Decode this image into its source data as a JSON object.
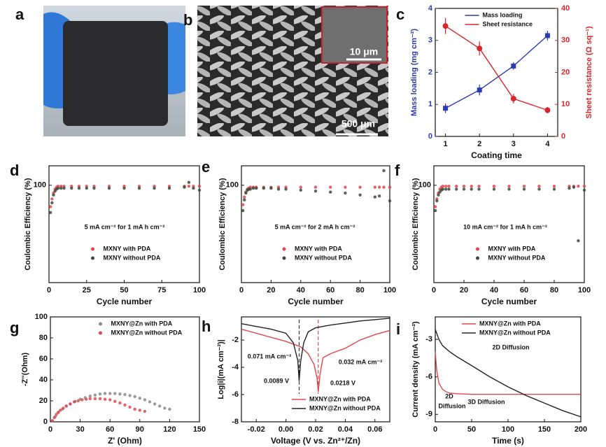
{
  "chart_data": [
    {
      "type": "image",
      "label": "a"
    },
    {
      "type": "image",
      "label": "b",
      "annotations": [
        "10 μm",
        "500 μm"
      ]
    },
    {
      "type": "line",
      "label": "c",
      "x": [
        1,
        2,
        3,
        4
      ],
      "xlim": [
        0.7,
        4.3
      ],
      "xticks": [
        1,
        2,
        3,
        4
      ],
      "ylim": [
        0,
        4
      ],
      "yticks": [
        0,
        1,
        2,
        3,
        4
      ],
      "y2lim": [
        0,
        40
      ],
      "y2ticks": [
        0,
        10,
        20,
        30,
        40
      ],
      "xlabel": "Coating time",
      "ylabel": "Mass loading (mg cm⁻²)",
      "y2label": "Sheet resistance (Ω sq⁻¹)",
      "legend": "upper center",
      "series": [
        {
          "name": "Mass loading",
          "color": "#2b3bb3",
          "values": [
            0.88,
            1.45,
            2.2,
            3.15
          ],
          "errors": [
            0.15,
            0.17,
            0.12,
            0.15
          ]
        },
        {
          "name": "Sheet resistance",
          "color": "#d8262b",
          "axis": "y2",
          "values": [
            34.5,
            27.5,
            11.8,
            8.2
          ],
          "errors": [
            2.5,
            2.2,
            1.5,
            1
          ]
        }
      ]
    },
    {
      "type": "scatter",
      "label": "d",
      "x": [
        1,
        2,
        3,
        4,
        5,
        6,
        8,
        10,
        15,
        20,
        25,
        30,
        40,
        50,
        60,
        70,
        80,
        90,
        93,
        96,
        100
      ],
      "xlim": [
        0,
        100
      ],
      "xticks": [
        0,
        25,
        50,
        75,
        100
      ],
      "ylim": [
        0,
        120
      ],
      "yticks": [
        100
      ],
      "xlabel": "Cycle number",
      "ylabel": "Coulombic Efficiency (%)",
      "legend": "lower center",
      "annotations": [
        "5 mA cm⁻² for 1 mA h cm⁻²"
      ],
      "series": [
        {
          "name": "MXNY with PDA",
          "color": "#e0464b",
          "values": [
            78,
            86,
            92,
            96,
            98,
            99,
            99,
            99,
            99,
            99,
            99,
            99,
            99,
            99,
            99,
            99,
            99,
            99,
            99,
            99,
            99
          ]
        },
        {
          "name": "MXNY without PDA",
          "color": "#3b4a3b",
          "values": [
            72,
            82,
            90,
            94,
            96,
            97,
            97,
            97,
            97,
            97,
            97,
            97,
            97,
            97,
            97,
            97,
            97,
            98,
            103,
            97,
            95
          ]
        }
      ]
    },
    {
      "type": "scatter",
      "label": "e",
      "x": [
        1,
        2,
        3,
        4,
        5,
        6,
        8,
        10,
        15,
        20,
        25,
        30,
        40,
        50,
        60,
        70,
        80,
        90,
        93,
        96,
        100
      ],
      "xlim": [
        0,
        100
      ],
      "xticks": [
        0,
        20,
        40,
        60,
        80,
        100
      ],
      "ylim": [
        0,
        120
      ],
      "yticks": [
        100
      ],
      "xlabel": "Cycle number",
      "ylabel": "Coulombic Efficiency (%)",
      "legend": "lower center",
      "annotations": [
        "5 mA cm⁻² for 2 mA h cm⁻²"
      ],
      "series": [
        {
          "name": "MXNY with PDA",
          "color": "#e0464b",
          "values": [
            80,
            88,
            93,
            96,
            97,
            98,
            98,
            98,
            98,
            98,
            98,
            98,
            98,
            98,
            98,
            98,
            98,
            98,
            98,
            98,
            98
          ]
        },
        {
          "name": "MXNY without PDA",
          "color": "#3b4a3b",
          "values": [
            74,
            85,
            92,
            95,
            96,
            96,
            97,
            97,
            97,
            97,
            96,
            96,
            95,
            94,
            93,
            92,
            90,
            88,
            89,
            115,
            84
          ]
        }
      ]
    },
    {
      "type": "scatter",
      "label": "f",
      "x": [
        1,
        2,
        3,
        4,
        5,
        6,
        8,
        10,
        15,
        20,
        25,
        30,
        40,
        50,
        60,
        70,
        80,
        90,
        93,
        96,
        100
      ],
      "xlim": [
        0,
        100
      ],
      "xticks": [
        0,
        20,
        40,
        60,
        80,
        100
      ],
      "ylim": [
        0,
        120
      ],
      "yticks": [
        100
      ],
      "xlabel": "Cycle number",
      "ylabel": "Coulombic Efficiency (%)",
      "legend": "lower center",
      "annotations": [
        "10 mA cm⁻² for 1 mA h cm⁻²"
      ],
      "series": [
        {
          "name": "MXNY with PDA",
          "color": "#e0464b",
          "values": [
            78,
            86,
            92,
            96,
            98,
            99,
            99,
            99,
            99,
            99,
            99,
            99,
            99,
            99,
            99,
            99,
            99,
            99,
            99,
            99,
            99
          ]
        },
        {
          "name": "MXNY without PDA",
          "color": "#3b4a3b",
          "values": [
            74,
            84,
            90,
            93,
            95,
            96,
            96,
            96,
            96,
            96,
            96,
            96,
            96,
            96,
            96,
            96,
            96,
            97,
            98,
            43,
            95
          ]
        }
      ]
    },
    {
      "type": "scatter",
      "label": "g",
      "xlim": [
        0,
        150
      ],
      "xticks": [
        0,
        30,
        60,
        90,
        120,
        150
      ],
      "ylim": [
        0,
        100
      ],
      "yticks": [
        0,
        20,
        40,
        60,
        80,
        100
      ],
      "xlabel": "Z' (Ohm)",
      "ylabel": "-Z''(Ohm)",
      "legend": "upper center",
      "series": [
        {
          "name": "MXNY@Zn with PDA",
          "color": "#8a8a8a",
          "x": [
            2,
            5,
            8,
            12,
            16,
            20,
            25,
            30,
            35,
            40,
            45,
            50,
            55,
            60,
            65,
            70,
            75,
            80,
            85,
            90,
            95,
            100,
            105,
            110,
            115,
            120
          ],
          "values": [
            1,
            5,
            9,
            12,
            15,
            17,
            19.5,
            21.5,
            23,
            24.5,
            25.5,
            26.5,
            27,
            27,
            27,
            26.5,
            26,
            25,
            24,
            22.5,
            21,
            19,
            17,
            15,
            13,
            12
          ]
        },
        {
          "name": "MXNY@Zn without PDA",
          "color": "#e0464b",
          "x": [
            2,
            4,
            6,
            8,
            10,
            13,
            16,
            20,
            24,
            28,
            32,
            36,
            40,
            45,
            50,
            55,
            60,
            65,
            70,
            75,
            80,
            85,
            90,
            95
          ],
          "values": [
            1,
            4,
            7,
            9,
            11,
            13,
            15,
            17,
            19,
            20,
            21,
            21.5,
            22,
            22,
            22,
            21.5,
            21,
            19.5,
            18,
            16,
            14,
            12,
            11,
            10
          ]
        }
      ]
    },
    {
      "type": "line",
      "label": "h",
      "xlim": [
        -0.03,
        0.07
      ],
      "xticks": [
        -0.02,
        {
          "value": 0,
          "label": "0.00"
        },
        0.02,
        0.04,
        0.06
      ],
      "ylim": [
        -8,
        -0.3
      ],
      "yticks": [
        -8,
        -6,
        -4,
        -2
      ],
      "xlabel": "Voltage (V vs. Zn²⁺/Zn)",
      "ylabel": "Log|i|(mA cm⁻²)|",
      "legend": "lower right",
      "annotations": [
        "0.071 mA cm⁻²",
        "0.0089 V",
        "0.032 mA cm⁻²",
        "0.0218 V"
      ],
      "vlines": [
        {
          "x": 0.0089,
          "color": "#222222"
        },
        {
          "x": 0.0218,
          "color": "#d8262b"
        }
      ],
      "series": [
        {
          "name": "MXNY@Zn with PDA",
          "color": "#e0464b",
          "x": [
            -0.03,
            -0.02,
            -0.01,
            0,
            0.01,
            0.015,
            0.019,
            0.021,
            0.0218,
            0.023,
            0.025,
            0.03,
            0.04,
            0.05,
            0.06,
            0.07
          ],
          "values": [
            -1.2,
            -1.5,
            -1.8,
            -2.1,
            -2.5,
            -3.0,
            -3.8,
            -4.8,
            -5.8,
            -4.5,
            -3.3,
            -3.0,
            -2.6,
            -2.0,
            -1.6,
            -1.3
          ]
        },
        {
          "name": "MXNY@Zn without PDA",
          "color": "#222222",
          "x": [
            -0.03,
            -0.02,
            -0.01,
            0,
            0.005,
            0.008,
            0.0089,
            0.01,
            0.012,
            0.015,
            0.02,
            0.03,
            0.04,
            0.05,
            0.06,
            0.07
          ],
          "values": [
            -0.8,
            -1.0,
            -1.2,
            -1.5,
            -2.2,
            -3.5,
            -5.0,
            -3.5,
            -2.2,
            -1.4,
            -1.1,
            -0.9,
            -0.75,
            -0.6,
            -0.5,
            -0.4
          ]
        }
      ]
    },
    {
      "type": "line",
      "label": "i",
      "xlim": [
        0,
        200
      ],
      "xticks": [
        0,
        50,
        100,
        150,
        200
      ],
      "ylim": [
        -9.6,
        -1.2
      ],
      "yticks": [
        -3,
        -6,
        -9
      ],
      "xlabel": "Time (s)",
      "ylabel": "Current density (mA cm⁻²)",
      "legend": "upper right",
      "annotations": [
        "2D Diffusion",
        "2D",
        "Diffusion",
        "3D Diffusion"
      ],
      "series": [
        {
          "name": "MXNY@Zn with PDA",
          "color": "#e0464b",
          "x": [
            0,
            2,
            5,
            10,
            15,
            20,
            30,
            50,
            100,
            150,
            200
          ],
          "values": [
            -4,
            -5.5,
            -6.5,
            -7.0,
            -7.2,
            -7.3,
            -7.35,
            -7.4,
            -7.4,
            -7.4,
            -7.4
          ]
        },
        {
          "name": "MXNY@Zn without PDA",
          "color": "#222222",
          "x": [
            0,
            5,
            10,
            20,
            30,
            50,
            75,
            100,
            125,
            150,
            175,
            200
          ],
          "values": [
            -2.2,
            -3.0,
            -3.5,
            -4.0,
            -4.4,
            -5.1,
            -6.0,
            -6.8,
            -7.5,
            -8.1,
            -8.7,
            -9.2
          ]
        }
      ]
    }
  ]
}
